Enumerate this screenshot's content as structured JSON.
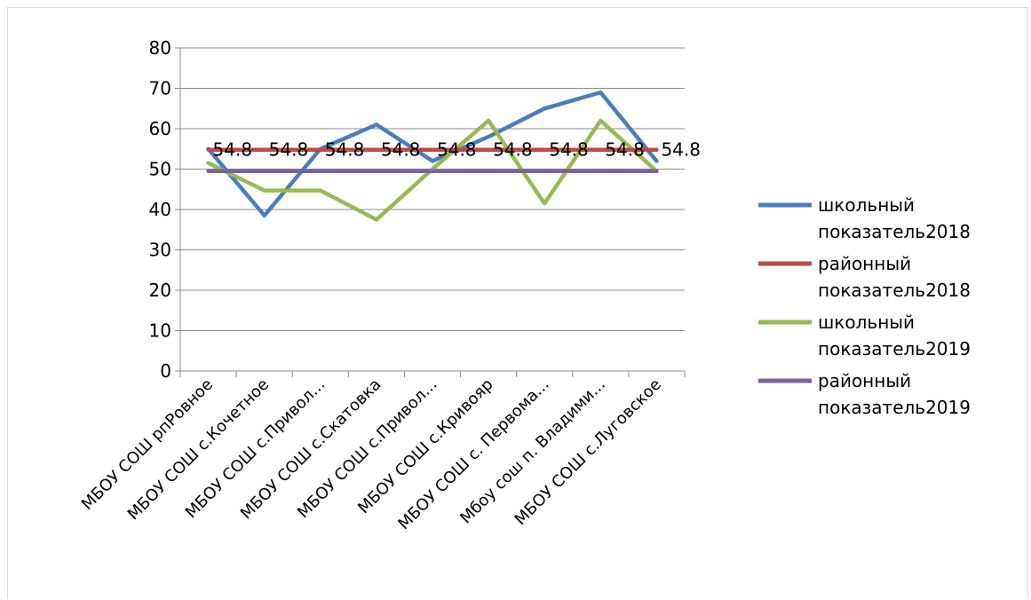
{
  "chart_data": {
    "type": "line",
    "categories": [
      "МБОУ СОШ рпРовное",
      "МБОУ СОШ с.Кочетное",
      "МБОУ СОШ с.Привол...",
      "МБОУ СОШ с.Скатовка",
      "МБОУ СОШ  с.Привол...",
      "МБОУ СОШ с.Кривояр",
      "МБОУ СОШ с. Первома...",
      "Мбоу сош п. Владими...",
      "МБОУ СОШ с.Луговское"
    ],
    "series": [
      {
        "name": "школьный показатель2018",
        "color": "#4a7ebb",
        "values": [
          55,
          38.5,
          55,
          61,
          52,
          58,
          65,
          69,
          52
        ]
      },
      {
        "name": "районный показатель2018",
        "color": "#be4b48",
        "values": [
          54.8,
          54.8,
          54.8,
          54.8,
          54.8,
          54.8,
          54.8,
          54.8,
          54.8
        ],
        "data_labels": [
          "54.8",
          "54.8",
          "54.8",
          "54.8",
          "54.8",
          "54.8",
          "54.8",
          "54.8",
          "54.8"
        ]
      },
      {
        "name": "школьный показатель2019",
        "color": "#98b954",
        "values": [
          51.5,
          44.7,
          44.7,
          37.5,
          50,
          62,
          41.5,
          62,
          49.5
        ]
      },
      {
        "name": "районный показатель2019",
        "color": "#7d60a0",
        "values": [
          49.5,
          49.5,
          49.5,
          49.5,
          49.5,
          49.5,
          49.5,
          49.5,
          49.5
        ]
      }
    ],
    "y_ticks": [
      "0",
      "10",
      "20",
      "30",
      "40",
      "50",
      "60",
      "70",
      "80"
    ],
    "ylim": [
      0,
      80
    ],
    "grid": true,
    "legend_position": "right",
    "title": "",
    "xlabel": "",
    "ylabel": ""
  }
}
